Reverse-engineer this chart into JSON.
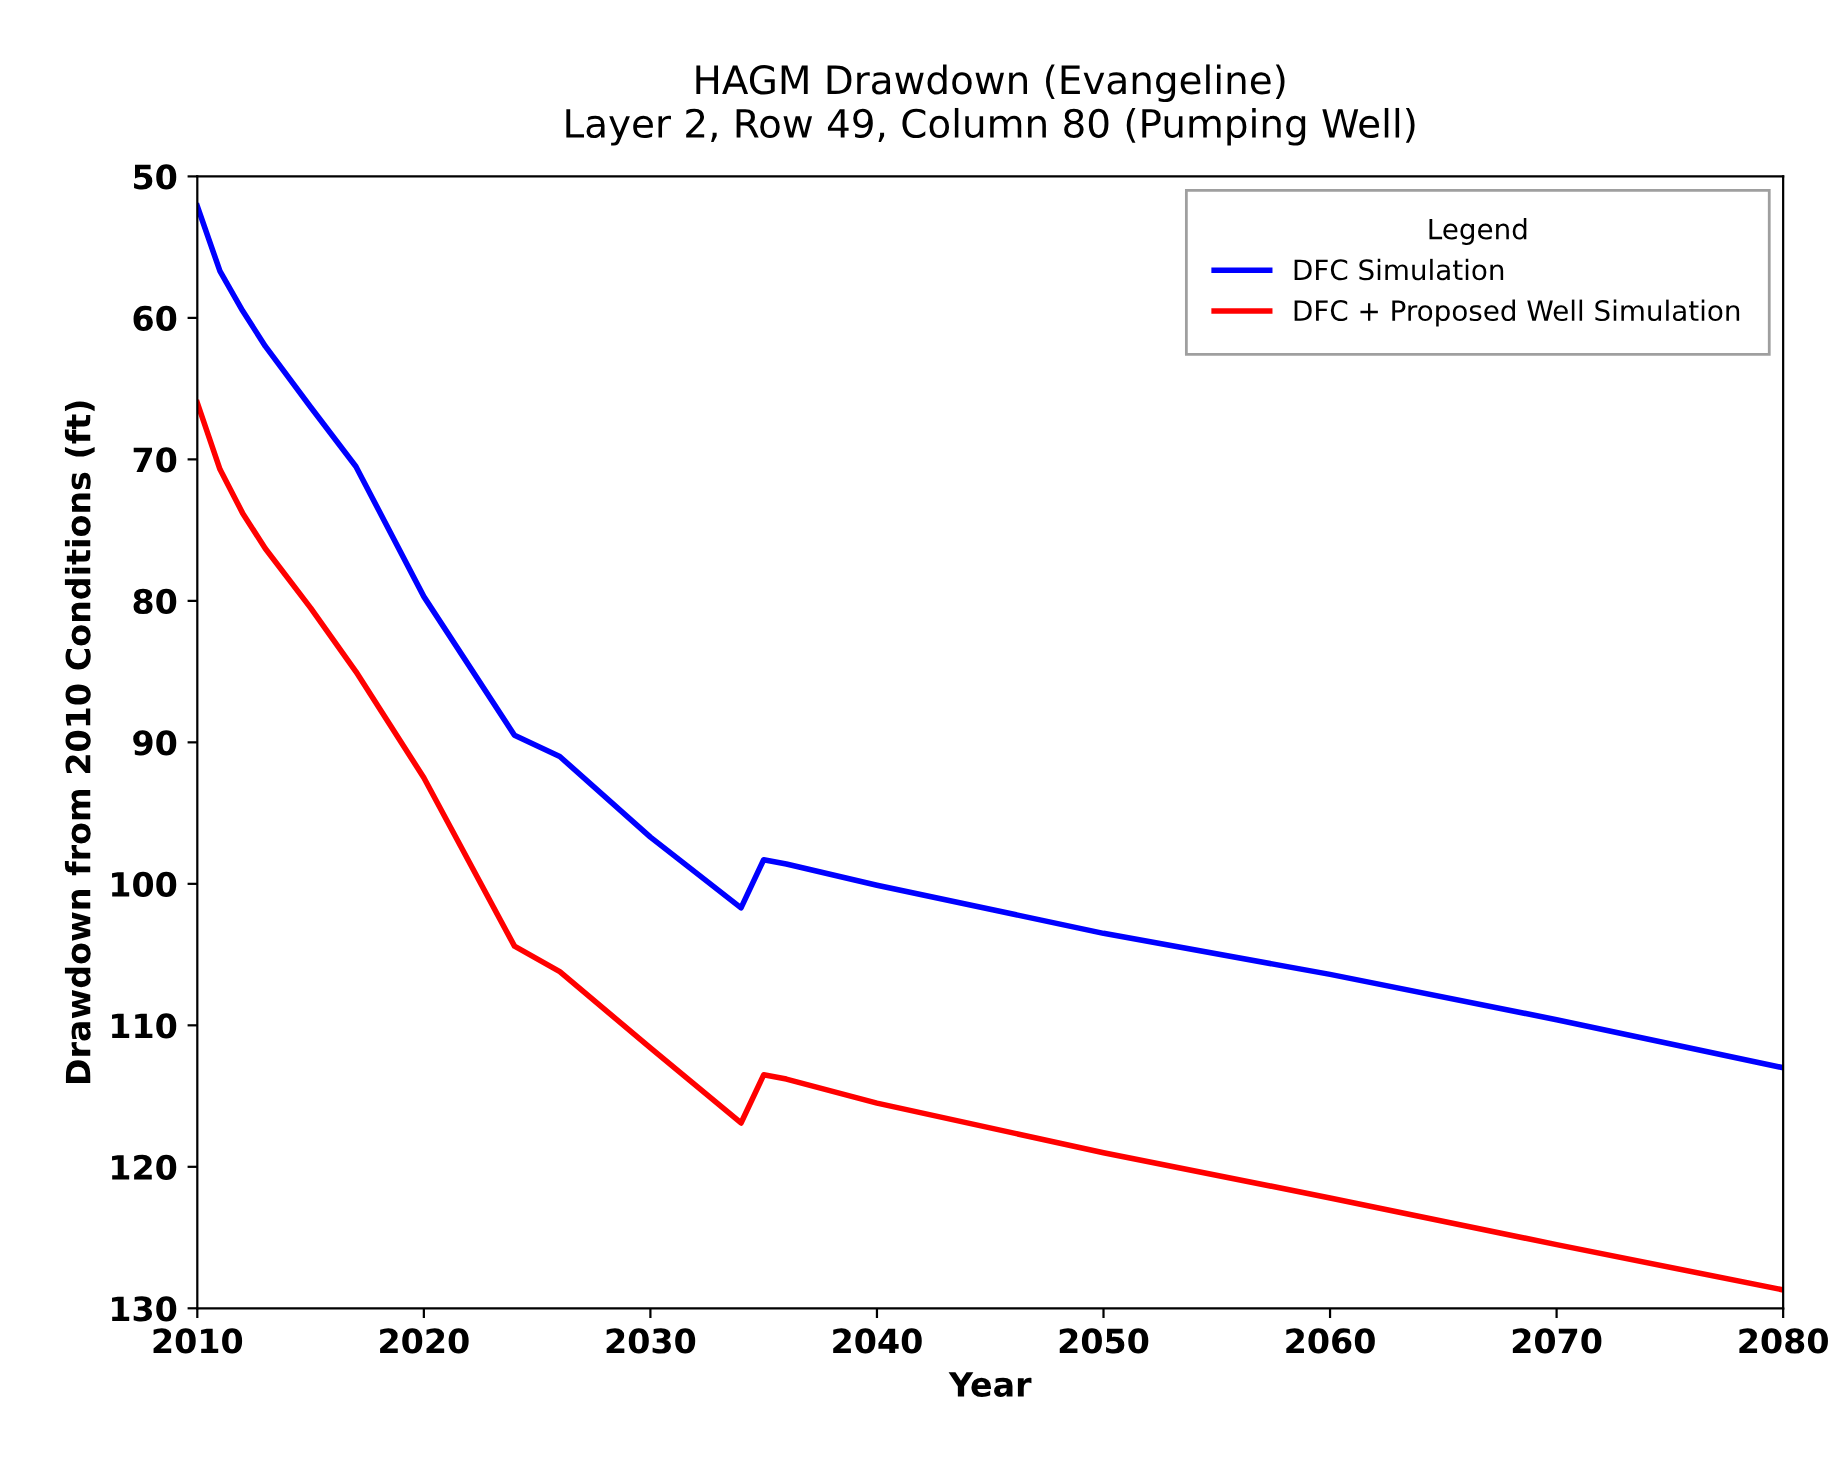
{
  "chart_data": {
    "type": "line",
    "title": "HAGM Drawdown (Evangeline)\nLayer 2, Row 49, Column 80 (Pumping Well)",
    "xlabel": "Year",
    "ylabel": "Drawdown from 2010 Conditions (ft)",
    "legend_title": "Legend",
    "legend": "top right",
    "grid": false,
    "marker": "none",
    "line_style": "solid",
    "xlim": [
      2010,
      2080
    ],
    "xticks": [
      2010,
      2020,
      2030,
      2040,
      2050,
      2060,
      2070,
      2080
    ],
    "ylim": [
      130,
      50
    ],
    "yticks": [
      50,
      60,
      70,
      80,
      90,
      100,
      110,
      120,
      130
    ],
    "series": [
      {
        "name": "DFC Simulation",
        "color": "#0000ff",
        "x": [
          2010,
          2011,
          2012,
          2013,
          2015,
          2017,
          2020,
          2024,
          2026,
          2030,
          2034,
          2035,
          2036,
          2040,
          2050,
          2060,
          2070,
          2080
        ],
        "values": [
          52.1,
          56.7,
          59.5,
          62,
          66.3,
          70.5,
          79.7,
          89.5,
          91,
          96.7,
          101.7,
          98.3,
          98.6,
          100.1,
          103.5,
          106.4,
          109.6,
          113.0
        ]
      },
      {
        "name": "DFC + Proposed Well Simulation",
        "color": "#ff0000",
        "x": [
          2010,
          2011,
          2012,
          2013,
          2015,
          2017,
          2020,
          2024,
          2026,
          2030,
          2034,
          2035,
          2036,
          2040,
          2050,
          2060,
          2070,
          2080
        ],
        "values": [
          66.0,
          70.7,
          73.8,
          76.3,
          80.5,
          85,
          92.5,
          104.4,
          106.2,
          111.6,
          116.9,
          113.5,
          113.8,
          115.5,
          119,
          122.2,
          125.5,
          128.7
        ]
      }
    ]
  }
}
